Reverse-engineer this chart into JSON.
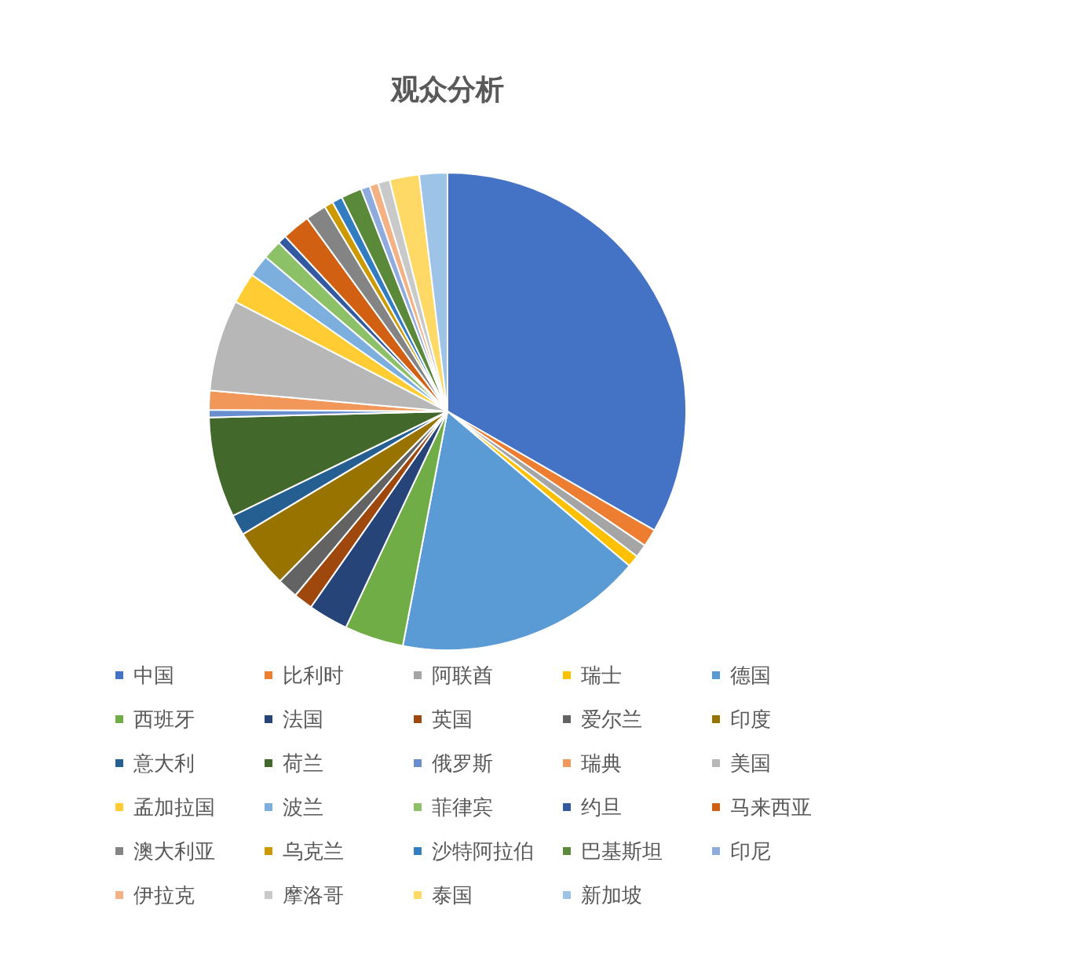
{
  "chart_data": {
    "type": "pie",
    "title": "观众分析",
    "categories": [
      "中国",
      "比利时",
      "阿联酋",
      "瑞士",
      "德国",
      "西班牙",
      "法国",
      "英国",
      "爱尔兰",
      "印度",
      "意大利",
      "荷兰",
      "俄罗斯",
      "瑞典",
      "美国",
      "孟加拉国",
      "波兰",
      "菲律宾",
      "约旦",
      "马来西亚",
      "澳大利亚",
      "乌克兰",
      "沙特阿拉伯",
      "巴基斯坦",
      "印尼",
      "伊拉克",
      "摩洛哥",
      "泰国",
      "新加坡"
    ],
    "values": [
      33.3,
      1.2,
      0.9,
      0.8,
      16.8,
      4.0,
      2.7,
      1.3,
      1.4,
      4.0,
      1.4,
      6.8,
      0.5,
      1.3,
      6.2,
      2.1,
      1.5,
      1.3,
      0.6,
      1.9,
      1.4,
      0.6,
      0.7,
      1.4,
      0.6,
      0.6,
      0.8,
      2.0,
      1.9
    ],
    "colors": [
      "#4472c4",
      "#ed7d31",
      "#a5a5a5",
      "#ffc000",
      "#5b9bd5",
      "#70ad47",
      "#264478",
      "#9e480e",
      "#636363",
      "#997300",
      "#255e91",
      "#43682b",
      "#698ed0",
      "#f1975a",
      "#b7b7b7",
      "#ffcd33",
      "#7cafdd",
      "#8cc168",
      "#335aa1",
      "#d26012",
      "#848484",
      "#cc9a00",
      "#327dc2",
      "#5a8a39",
      "#8faadc",
      "#f4b183",
      "#c9c9c9",
      "#ffd966",
      "#9dc3e6"
    ],
    "legend": "bottom"
  }
}
